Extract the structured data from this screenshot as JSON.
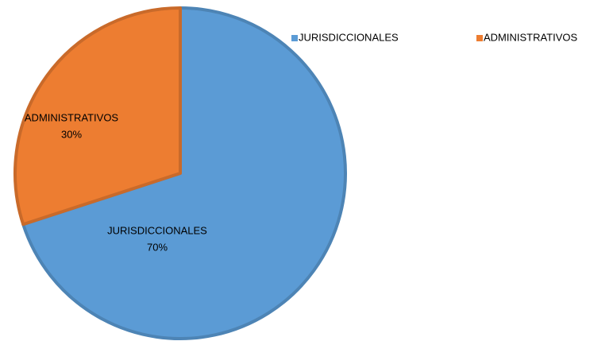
{
  "chart_data": {
    "type": "pie",
    "categories": [
      "JURISDICCIONALES",
      "ADMINISTRATIVOS"
    ],
    "values": [
      70,
      30
    ],
    "value_labels": [
      "70%",
      "30%"
    ],
    "colors": [
      "#5b9bd5",
      "#ed7d31"
    ],
    "legend": "top-right"
  }
}
